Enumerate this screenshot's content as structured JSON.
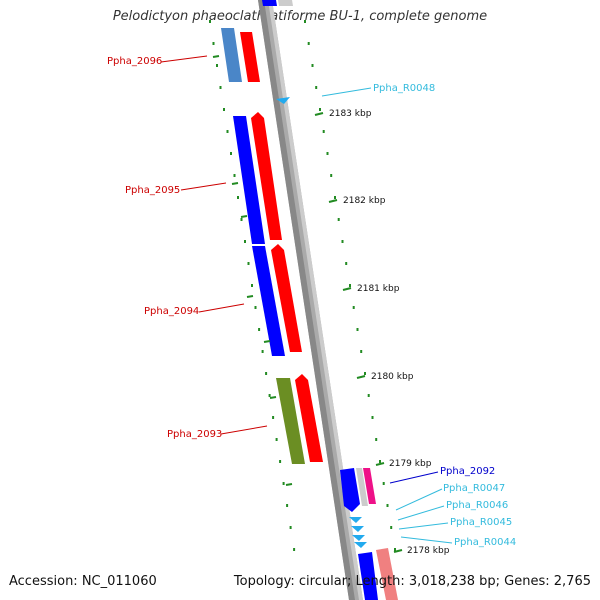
{
  "header": {
    "title": "Pelodictyon phaeoclathratiforme BU-1, complete genome"
  },
  "footer": {
    "accession": "Accession: NC_011060",
    "summary": "Topology: circular; Length: 3,018,238 bp; Genes: 2,765"
  },
  "ruler": {
    "unit": "kbp",
    "ticks": [
      "2183 kbp",
      "2182 kbp",
      "2181 kbp",
      "2180 kbp",
      "2179 kbp",
      "2178 kbp"
    ]
  },
  "colors": {
    "label_cds": "#cc0000",
    "label_rna": "#33bbdd",
    "label_selected": "#0000cc",
    "tick": "#228b22",
    "backbone": "#888888"
  },
  "genes": [
    {
      "id": "Ppha_2096",
      "kind": "cds"
    },
    {
      "id": "Ppha_2095",
      "kind": "cds"
    },
    {
      "id": "Ppha_2094",
      "kind": "cds"
    },
    {
      "id": "Ppha_2093",
      "kind": "cds"
    },
    {
      "id": "Ppha_2092",
      "kind": "selected"
    },
    {
      "id": "Ppha_R0048",
      "kind": "rna"
    },
    {
      "id": "Ppha_R0047",
      "kind": "rna"
    },
    {
      "id": "Ppha_R0046",
      "kind": "rna"
    },
    {
      "id": "Ppha_R0045",
      "kind": "rna"
    },
    {
      "id": "Ppha_R0044",
      "kind": "rna"
    }
  ]
}
